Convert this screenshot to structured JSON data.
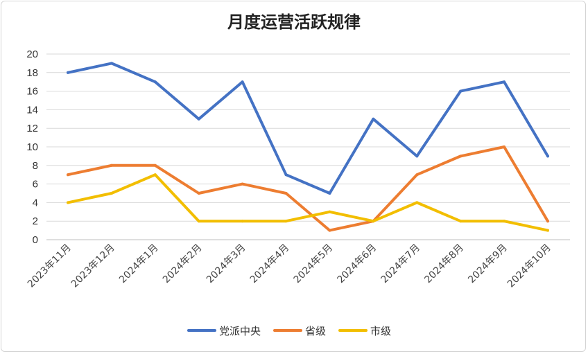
{
  "chart_data": {
    "type": "line",
    "title": "月度运营活跃规律",
    "xlabel": "",
    "ylabel": "",
    "categories": [
      "2023年11月",
      "2023年12月",
      "2024年1月",
      "2024年2月",
      "2024年3月",
      "2024年4月",
      "2024年5月",
      "2024年6月",
      "2024年7月",
      "2024年8月",
      "2024年9月",
      "2024年10月"
    ],
    "ylim": [
      0,
      20
    ],
    "yticks": [
      0,
      2,
      4,
      6,
      8,
      10,
      12,
      14,
      16,
      18,
      20
    ],
    "grid": true,
    "legend_position": "bottom",
    "series": [
      {
        "name": "党派中央",
        "color": "#4472C4",
        "values": [
          18,
          19,
          17,
          13,
          17,
          7,
          5,
          13,
          9,
          16,
          17,
          9
        ]
      },
      {
        "name": "省级",
        "color": "#ED7D31",
        "values": [
          7,
          8,
          8,
          5,
          6,
          5,
          1,
          2,
          7,
          9,
          10,
          2
        ]
      },
      {
        "name": "市级",
        "color": "#F2BE00",
        "values": [
          4,
          5,
          7,
          2,
          2,
          2,
          3,
          2,
          4,
          2,
          2,
          1
        ]
      }
    ]
  }
}
